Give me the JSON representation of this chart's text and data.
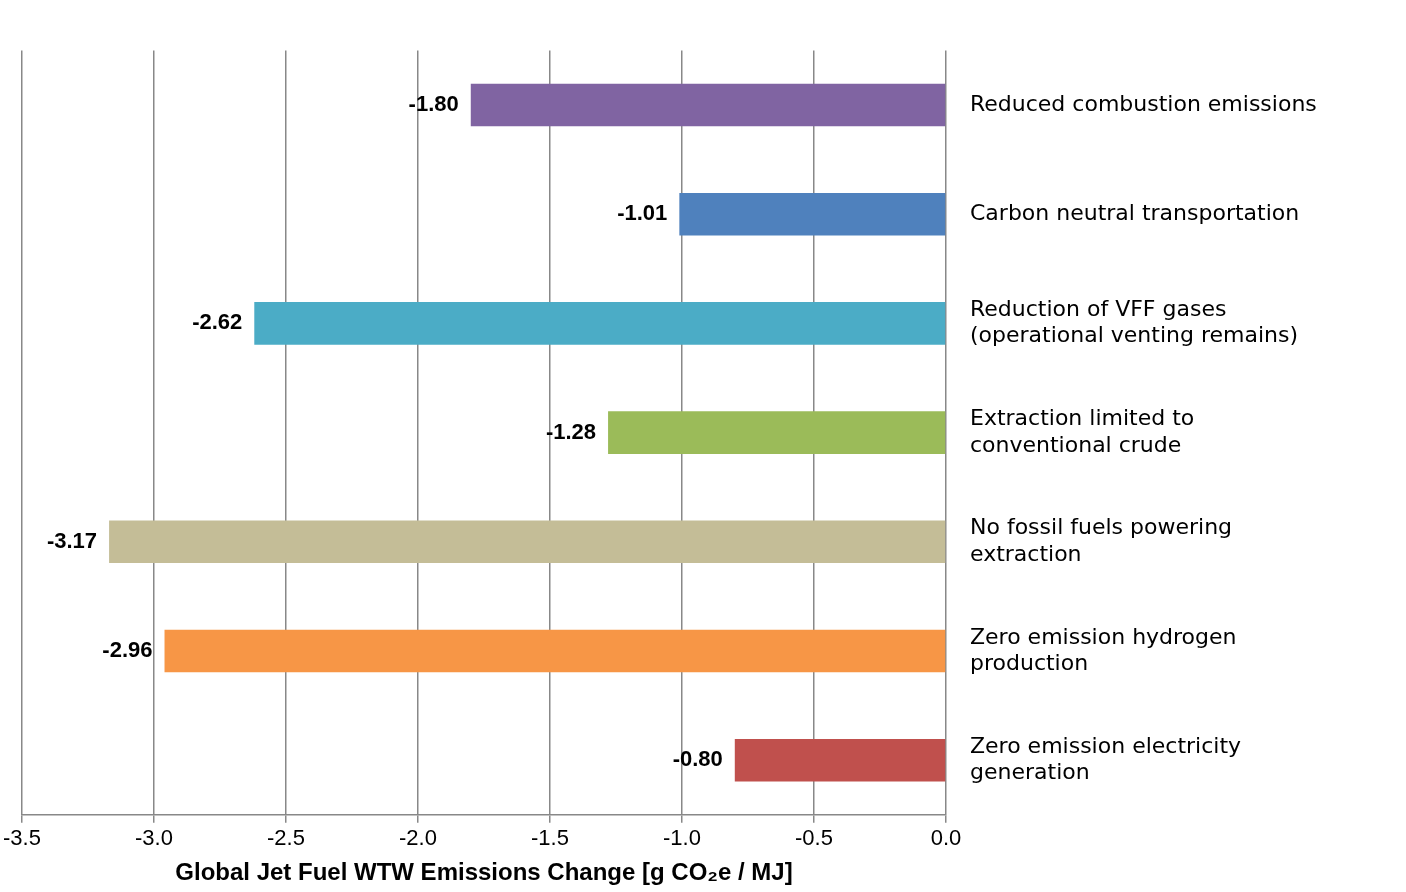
{
  "chart_data": {
    "type": "bar",
    "orientation": "horizontal",
    "xlabel": "Global Jet Fuel WTW Emissions Change [g CO₂e / MJ]",
    "categories": [
      "Reduced combustion emissions",
      "Carbon neutral transportation",
      "Reduction of VFF gases (operational venting remains)",
      "Extraction limited to conventional crude",
      "No fossil fuels powering extraction",
      "Zero emission hydrogen production",
      "Zero emission electricity generation"
    ],
    "values": [
      -1.8,
      -1.01,
      -2.62,
      -1.28,
      -3.17,
      -2.96,
      -0.8
    ],
    "colors": [
      "#8064a2",
      "#4f81bd",
      "#4bacc6",
      "#9bbb59",
      "#c4bd97",
      "#f79646",
      "#c0504d"
    ],
    "xlim": [
      -3.5,
      0
    ],
    "xticks": [
      -3.5,
      {
        "value": -3,
        "label": "-3.0"
      },
      -2.5,
      {
        "value": -2,
        "label": "-2.0"
      },
      -1.5,
      {
        "value": -1,
        "label": "-1.0"
      },
      -0.5,
      {
        "value": 0,
        "label": "0.0"
      }
    ],
    "value_labels": [
      "-1.80",
      "-1.01",
      "-2.62",
      "-1.28",
      "-3.17",
      "-2.96",
      "-0.80"
    ],
    "grid": "x"
  }
}
